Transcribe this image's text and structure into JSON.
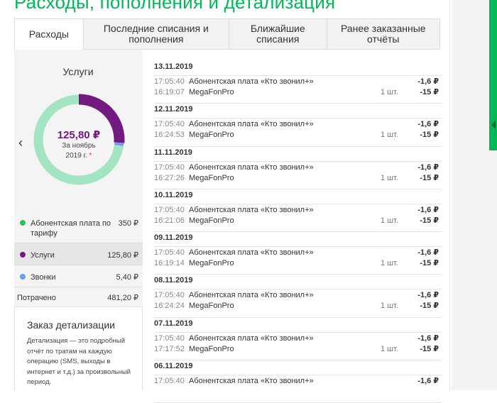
{
  "page_title": "Расходы, пополнения и детализация",
  "tabs": [
    {
      "label": "Расходы"
    },
    {
      "label": "Последние списания и пополнения"
    },
    {
      "label": "Ближайшие списания"
    },
    {
      "label": "Ранее заказанные отчёты"
    }
  ],
  "summary": {
    "title": "Услуги",
    "amount": "125,80 ₽",
    "period_line1": "За ноябрь",
    "period_line2": "2019 г.",
    "period_mark": "*"
  },
  "colors": {
    "brand_green": "#00b956",
    "light_green": "#a3e4c2",
    "purple": "#731982",
    "blue": "#6a9df5"
  },
  "legend": [
    {
      "label": "Абонентская плата по тарифу",
      "value": "350 ₽",
      "color": "#2dbf5b",
      "selected": false
    },
    {
      "label": "Услуги",
      "value": "125,80 ₽",
      "color": "#731982",
      "selected": true
    },
    {
      "label": "Звонки",
      "value": "5,40 ₽",
      "color": "#6a9df5",
      "selected": false
    }
  ],
  "total": {
    "label": "Потрачено",
    "value": "481,20 ₽"
  },
  "donut_shares": {
    "tariff": 350,
    "services": 125.8,
    "calls": 5.4
  },
  "order_detail": {
    "title": "Заказ детализации",
    "text": "Детализация — это подробный отчёт по тратам на каждую операцию (SMS, выходы в интернет и т.д.) за произвольный период."
  },
  "transactions": [
    {
      "date": "13.11.2019",
      "items": [
        {
          "time": "17:05:40",
          "name": "Абонентская плата «Кто звонил+»",
          "qty": "",
          "amount": "-1,6 ₽"
        },
        {
          "time": "16:19:07",
          "name": "MegaFonPro",
          "qty": "1 шт.",
          "amount": "-15 ₽"
        }
      ]
    },
    {
      "date": "12.11.2019",
      "items": [
        {
          "time": "17:05:40",
          "name": "Абонентская плата «Кто звонил+»",
          "qty": "",
          "amount": "-1,6 ₽"
        },
        {
          "time": "16:24:53",
          "name": "MegaFonPro",
          "qty": "1 шт.",
          "amount": "-15 ₽"
        }
      ]
    },
    {
      "date": "11.11.2019",
      "items": [
        {
          "time": "17:05:40",
          "name": "Абонентская плата «Кто звонил+»",
          "qty": "",
          "amount": "-1,6 ₽"
        },
        {
          "time": "16:27:26",
          "name": "MegaFonPro",
          "qty": "1 шт.",
          "amount": "-15 ₽"
        }
      ]
    },
    {
      "date": "10.11.2019",
      "items": [
        {
          "time": "17:05:40",
          "name": "Абонентская плата «Кто звонил+»",
          "qty": "",
          "amount": "-1,6 ₽"
        },
        {
          "time": "16:21:06",
          "name": "MegaFonPro",
          "qty": "1 шт.",
          "amount": "-15 ₽"
        }
      ]
    },
    {
      "date": "09.11.2019",
      "items": [
        {
          "time": "17:05:40",
          "name": "Абонентская плата «Кто звонил+»",
          "qty": "",
          "amount": "-1,6 ₽"
        },
        {
          "time": "16:19:14",
          "name": "MegaFonPro",
          "qty": "1 шт.",
          "amount": "-15 ₽"
        }
      ]
    },
    {
      "date": "08.11.2019",
      "items": [
        {
          "time": "17:05:40",
          "name": "Абонентская плата «Кто звонил+»",
          "qty": "",
          "amount": "-1,6 ₽"
        },
        {
          "time": "16:24:24",
          "name": "MegaFonPro",
          "qty": "1 шт.",
          "amount": "-15 ₽"
        }
      ]
    },
    {
      "date": "07.11.2019",
      "items": [
        {
          "time": "17:05:40",
          "name": "Абонентская плата «Кто звонил+»",
          "qty": "",
          "amount": "-1,6 ₽"
        },
        {
          "time": "17:17:52",
          "name": "MegaFonPro",
          "qty": "1 шт.",
          "amount": "-15 ₽"
        }
      ]
    },
    {
      "date": "06.11.2019",
      "items": [
        {
          "time": "17:05:40",
          "name": "Абонентская плата «Кто звонил+»",
          "qty": "",
          "amount": "-1,6 ₽"
        }
      ]
    }
  ]
}
